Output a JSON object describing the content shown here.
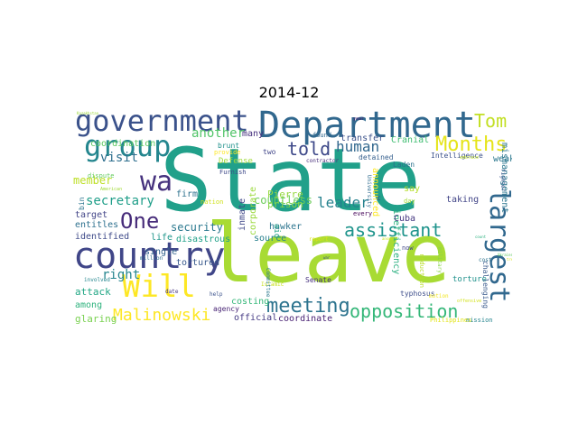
{
  "title": "2014-12",
  "words": [
    {
      "text": "State",
      "color": "#21a08a"
    },
    {
      "text": "leave",
      "color": "#a8db34"
    },
    {
      "text": "Department",
      "color": "#31688e"
    },
    {
      "text": "government",
      "color": "#3b528b"
    },
    {
      "text": "country",
      "color": "#404688"
    },
    {
      "text": "group",
      "color": "#24868e"
    },
    {
      "text": "Will",
      "color": "#fde725"
    },
    {
      "text": "largest",
      "color": "#31688e"
    },
    {
      "text": "wa",
      "color": "#46327e"
    },
    {
      "text": "One",
      "color": "#472c7a"
    },
    {
      "text": "Months",
      "color": "#e5e419"
    },
    {
      "text": "Tom",
      "color": "#c2df23"
    },
    {
      "text": "meeting",
      "color": "#2c738e"
    },
    {
      "text": "opposition",
      "color": "#35b779"
    },
    {
      "text": "assistant",
      "color": "#1f948c"
    },
    {
      "text": "Malinowski",
      "color": "#fde725"
    },
    {
      "text": "leader",
      "color": "#26828e"
    },
    {
      "text": "told",
      "color": "#3e4989"
    },
    {
      "text": "human",
      "color": "#31688e"
    },
    {
      "text": "right",
      "color": "#25858e"
    },
    {
      "text": "visit",
      "color": "#2e6f8e"
    },
    {
      "text": "secretary",
      "color": "#1f9e89"
    },
    {
      "text": "another",
      "color": "#52c569"
    },
    {
      "text": "member",
      "color": "#bddf26"
    },
    {
      "text": "security",
      "color": "#2a788e"
    },
    {
      "text": "countless",
      "color": "#6ccd5a"
    },
    {
      "text": "inefficiency",
      "color": "#29af7f"
    },
    {
      "text": "mismanagement",
      "color": "#2a768e"
    },
    {
      "text": "coordination",
      "color": "#5ec962"
    },
    {
      "text": "official",
      "color": "#443a83"
    },
    {
      "text": "coordinate",
      "color": "#482173"
    },
    {
      "text": "attack",
      "color": "#22a785"
    },
    {
      "text": "glaring",
      "color": "#7ad151"
    },
    {
      "text": "among",
      "color": "#2db27d"
    },
    {
      "text": "identified",
      "color": "#3e4a89"
    },
    {
      "text": "target",
      "color": "#414487"
    },
    {
      "text": "entitles",
      "color": "#2d708e"
    },
    {
      "text": "single",
      "color": "#33638d"
    },
    {
      "text": "tortured",
      "color": "#38598c"
    },
    {
      "text": "life",
      "color": "#1f968b"
    },
    {
      "text": "disastrous",
      "color": "#1fa188"
    },
    {
      "text": "source",
      "color": "#27808e"
    },
    {
      "text": "hawker",
      "color": "#2b748e"
    },
    {
      "text": "prison",
      "color": "#86d549"
    },
    {
      "text": "Pierre",
      "color": "#95d840"
    },
    {
      "text": "inmate",
      "color": "#3f4788"
    },
    {
      "text": "corporate",
      "color": "#9bd93c"
    },
    {
      "text": "firm",
      "color": "#2d718e"
    },
    {
      "text": "costing",
      "color": "#35b779"
    },
    {
      "text": "agency",
      "color": "#482475"
    },
    {
      "text": "Cuba",
      "color": "#453781"
    },
    {
      "text": "weak",
      "color": "#2a778e"
    },
    {
      "text": "say",
      "color": "#b5de2b"
    },
    {
      "text": "Cranial",
      "color": "#40bd72"
    },
    {
      "text": "announced",
      "color": "#fde725"
    },
    {
      "text": "transfer",
      "color": "#3b528b"
    },
    {
      "text": "Defense",
      "color": "#9fda3a"
    },
    {
      "text": "aid",
      "color": "#20a386"
    },
    {
      "text": "Senate",
      "color": "#46307e"
    },
    {
      "text": "typhosus",
      "color": "#3d4d8a"
    },
    {
      "text": "torture",
      "color": "#20928c"
    },
    {
      "text": "taking",
      "color": "#414487"
    },
    {
      "text": "challenging",
      "color": "#38598c"
    },
    {
      "text": "mission",
      "color": "#25848e"
    },
    {
      "text": "Intelligence",
      "color": "#3b518b"
    },
    {
      "text": "Laden",
      "color": "#2c728e"
    },
    {
      "text": "detained",
      "color": "#355f8d"
    },
    {
      "text": "brunt",
      "color": "#21918c"
    },
    {
      "text": "provide",
      "color": "#fde725"
    },
    {
      "text": "many",
      "color": "#46307e"
    },
    {
      "text": "two",
      "color": "#404588"
    },
    {
      "text": "found",
      "color": "#31688e"
    },
    {
      "text": "contractor",
      "color": "#472d7b"
    },
    {
      "text": "Islamic",
      "color": "#c8e020"
    },
    {
      "text": "Committee",
      "color": "#2a788e"
    },
    {
      "text": "military",
      "color": "#89d548"
    },
    {
      "text": "University",
      "color": "#2f6b8e"
    },
    {
      "text": "reduction",
      "color": "#b8de29"
    },
    {
      "text": "nation",
      "color": "#d0e11c"
    },
    {
      "text": "Philippines",
      "color": "#e2e418"
    },
    {
      "text": "Furnish",
      "color": "#3e4989"
    },
    {
      "text": "dispute",
      "color": "#63cb5f"
    },
    {
      "text": "American",
      "color": "#a2da37"
    },
    {
      "text": "involved",
      "color": "#24868e"
    },
    {
      "text": "million",
      "color": "#2e6e8e"
    },
    {
      "text": "date",
      "color": "#46337f"
    },
    {
      "text": "help",
      "color": "#3b528b"
    },
    {
      "text": "every",
      "color": "#450559"
    },
    {
      "text": "day",
      "color": "#a5db36"
    },
    {
      "text": "now",
      "color": "#404588"
    },
    {
      "text": "cost",
      "color": "#2c728e"
    },
    {
      "text": "report",
      "color": "#dfe318"
    },
    {
      "text": "fighter",
      "color": "#3a548c"
    },
    {
      "text": "embrace",
      "color": "#c0df25"
    },
    {
      "text": "motion",
      "color": "#f1e51d"
    },
    {
      "text": "offensive",
      "color": "#d2e21b"
    },
    {
      "text": "war",
      "color": "#3c4f8a"
    },
    {
      "text": "year",
      "color": "#481a6c"
    },
    {
      "text": "bin",
      "color": "#2b748e"
    },
    {
      "text": "answer",
      "color": "#cae11f"
    },
    {
      "text": "Kazakhstan",
      "color": "#9dd93b"
    },
    {
      "text": "Ukraine",
      "color": "#5ec962"
    },
    {
      "text": "count",
      "color": "#2ab07f"
    },
    {
      "text": "c",
      "color": "#3f4889"
    },
    {
      "text": "trend",
      "color": "#d8e219"
    }
  ]
}
